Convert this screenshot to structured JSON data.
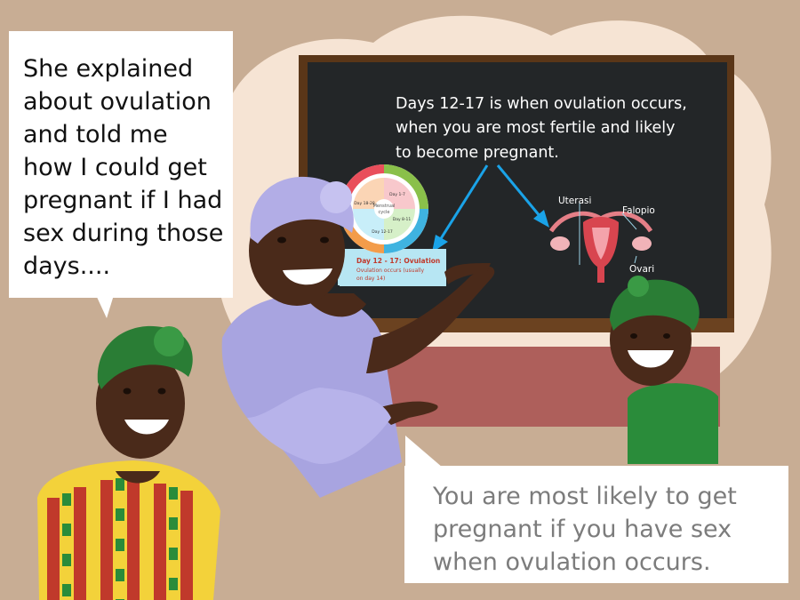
{
  "left_bubble": {
    "lines": [
      "She explained",
      "about ovulation",
      "and told me",
      "how I could get",
      "pregnant if I had",
      "sex during those",
      "days...."
    ]
  },
  "right_bubble": {
    "lines": [
      "You are most likely to get",
      "pregnant if you have sex",
      "when ovulation occurs."
    ]
  },
  "board": {
    "lines": [
      "Days 12-17 is when ovulation occurs,",
      "when you are most fertile and likely",
      "to become pregnant."
    ]
  },
  "cycle_chart": {
    "center": [
      "Menstrual",
      "cycle"
    ],
    "segments": [
      "Day 1-7",
      "Day 8-11",
      "Day 12-17",
      "Day 18-28"
    ],
    "note_title": "Day 12 - 17:  Ovulation",
    "note_body": [
      "Ovulation occurs (usually",
      "on day 14)"
    ]
  },
  "anatomy": {
    "uterasi": "Uterasi",
    "falopio": "Falopio",
    "ovari": "Ovari"
  },
  "colors": {
    "background": "#c8ad94",
    "cloud": "#f6e4d4",
    "board": "#232628",
    "frame": "#5a3618",
    "arrow": "#1aa3e8",
    "skin": "#4a2a1a",
    "teacher_dress": "#a8a4e0",
    "headwrap_green": "#1f7a2e"
  }
}
